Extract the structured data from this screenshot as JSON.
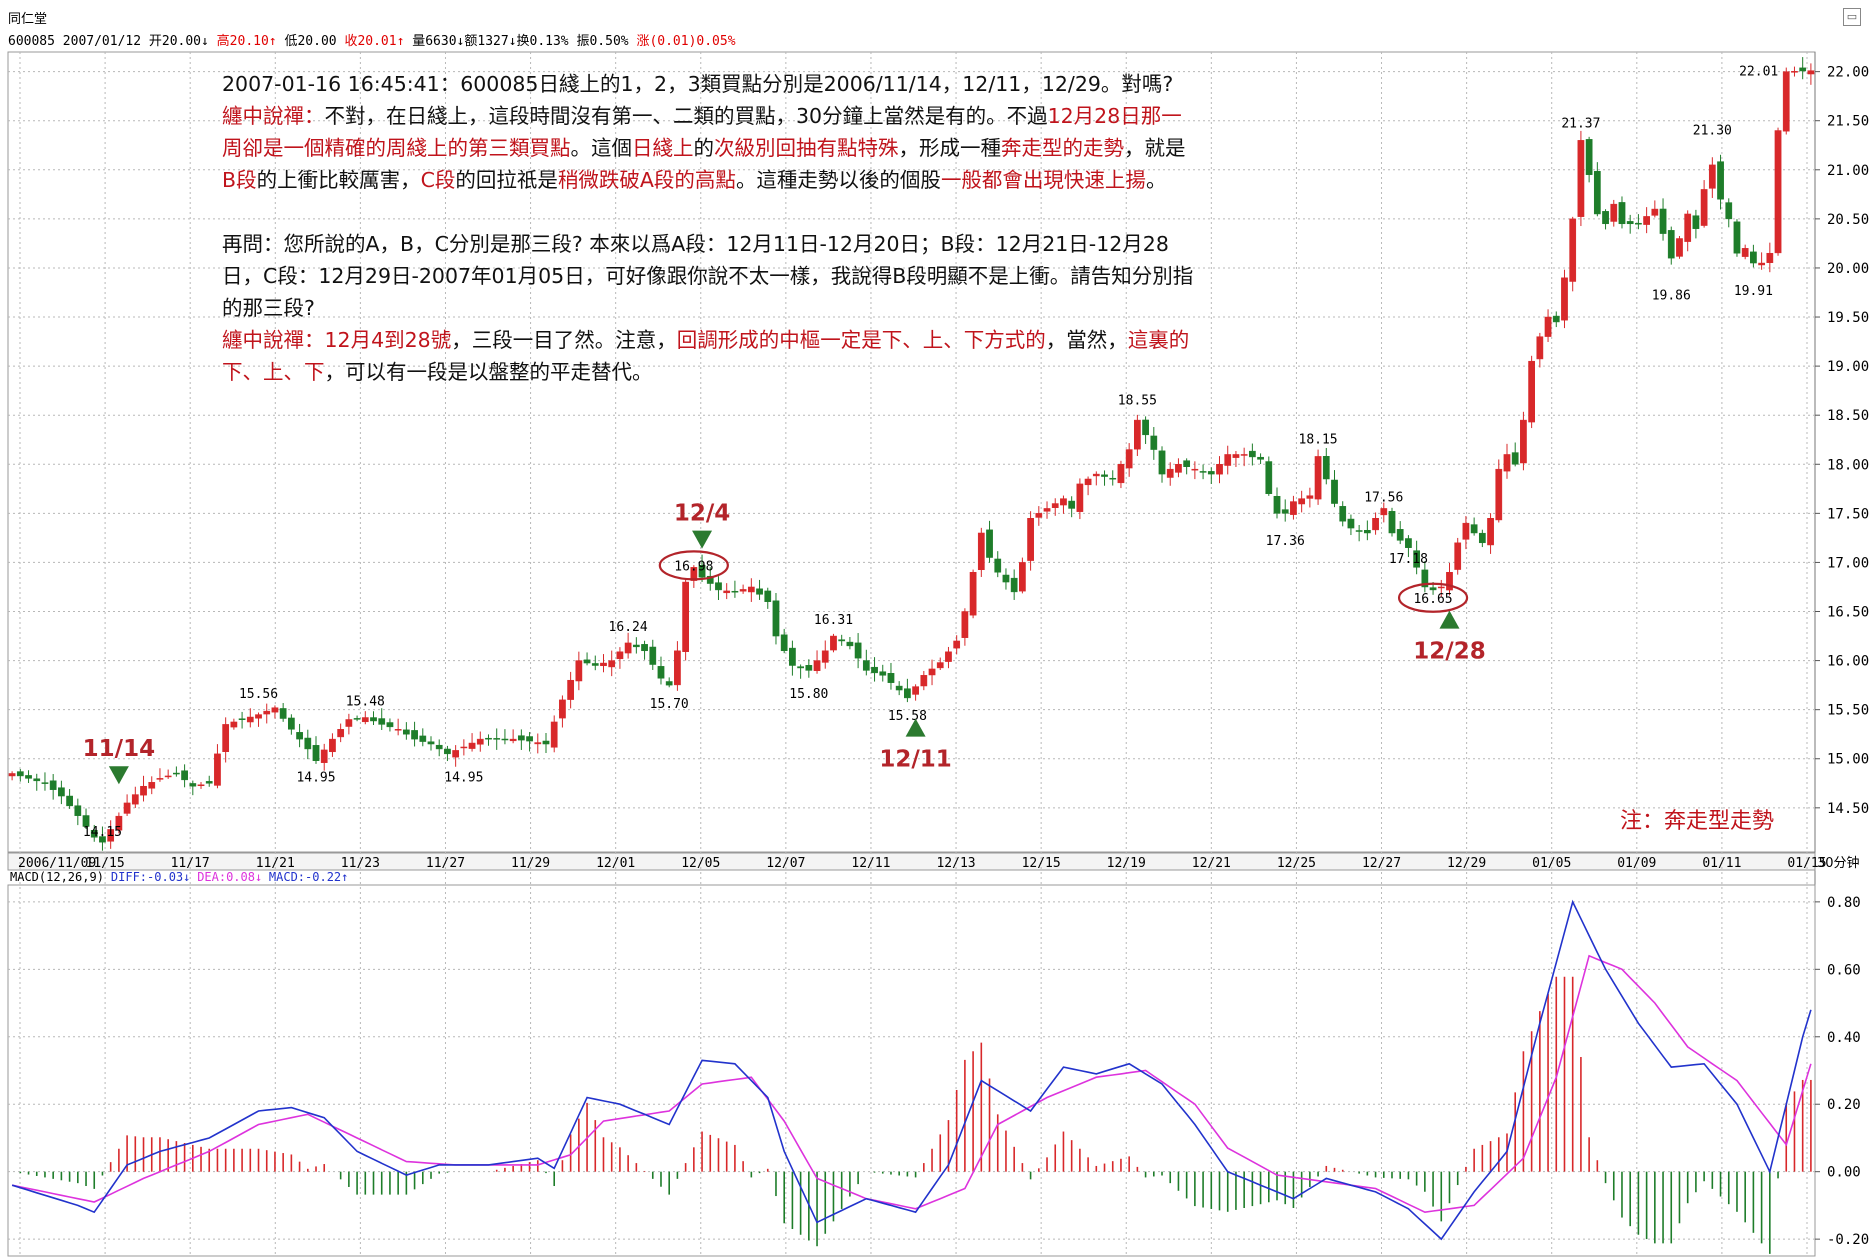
{
  "header": {
    "app_title": "同仁堂",
    "quote": [
      {
        "t": "600085 2007/01/12 开20.00↓",
        "red": false
      },
      {
        "t": "高20.10↑",
        "red": true
      },
      {
        "t": "低20.00",
        "red": false
      },
      {
        "t": "收20.01↑",
        "red": true
      },
      {
        "t": "量6630↓额1327↓换0.13% 振0.50%",
        "red": false
      },
      {
        "t": "涨(0.01)0.05%",
        "red": true
      }
    ]
  },
  "notes": [
    [
      {
        "t": "2007-01-16 16:45:41：600085日綫上的1，2，3類買點分別是2006/11/14，12/11，12/29。對嗎?",
        "red": false
      }
    ],
    [
      {
        "t": "纏中說禪：",
        "red": true
      },
      {
        "t": "不對，在日綫上，這段時間沒有第一、二類的買點，30分鐘上當然是有的。不過",
        "red": false
      },
      {
        "t": "12月28日那一",
        "red": true
      }
    ],
    [
      {
        "t": "周卻是一個精確的周綫上的第三類買點",
        "red": true
      },
      {
        "t": "。這個",
        "red": false
      },
      {
        "t": "日綫上",
        "red": true
      },
      {
        "t": "的",
        "red": false
      },
      {
        "t": "次級別回抽有點特殊",
        "red": true
      },
      {
        "t": "，形成一種",
        "red": false
      },
      {
        "t": "奔走型的走勢",
        "red": true
      },
      {
        "t": "，就是",
        "red": false
      }
    ],
    [
      {
        "t": "B段",
        "red": true
      },
      {
        "t": "的上衝比較厲害，",
        "red": false
      },
      {
        "t": "C段",
        "red": true
      },
      {
        "t": "的回拉祇是",
        "red": false
      },
      {
        "t": "稍微跌破A段的高點",
        "red": true
      },
      {
        "t": "。這種走勢以後的個股",
        "red": false
      },
      {
        "t": "一般都會出現快速上揚",
        "red": true
      },
      {
        "t": "。",
        "red": false
      }
    ],
    [],
    [
      {
        "t": "再問：您所說的A，B，C分別是那三段? 本來以爲A段：12月11日-12月20日；B段：12月21日-12月28",
        "red": false
      }
    ],
    [
      {
        "t": "日，C段：12月29日-2007年01月05日，可好像跟你說不太一樣，我說得B段明顯不是上衝。請告知分別指",
        "red": false
      }
    ],
    [
      {
        "t": "的那三段?",
        "red": false
      }
    ],
    [
      {
        "t": "纏中說禪：12月4到28號",
        "red": true
      },
      {
        "t": "，三段一目了然。注意，",
        "red": false
      },
      {
        "t": "回調形成的中樞一定是下、上、下方式的",
        "red": true
      },
      {
        "t": "，當然，",
        "red": false
      },
      {
        "t": "這裏的",
        "red": true
      }
    ],
    [
      {
        "t": "下、上、下",
        "red": true
      },
      {
        "t": "，可以有一段是以盤整的平走替代。",
        "red": false
      }
    ]
  ],
  "footnote": "注：奔走型走勢",
  "icons": {
    "corner": "window-restore-icon"
  },
  "colors": {
    "up": "#d8282a",
    "down": "#1e7d2a",
    "diff": "#2233cc",
    "dea": "#dd33dd",
    "note_red": "#c0141c",
    "grid": "#b8b8b8"
  },
  "chart_data": [
    {
      "type": "candlestick",
      "period_label": "30分钟",
      "y_axis": {
        "ylim": [
          14.05,
          22.2
        ],
        "ticks": [
          "14.50",
          "15.00",
          "15.50",
          "16.00",
          "16.50",
          "17.00",
          "17.50",
          "18.00",
          "18.50",
          "19.00",
          "19.50",
          "20.00",
          "20.50",
          "21.00",
          "21.50",
          "22.00"
        ]
      },
      "x_ticks": [
        "2006/11/09",
        "11/15",
        "11/17",
        "11/21",
        "11/23",
        "11/27",
        "11/29",
        "12/01",
        "12/05",
        "12/07",
        "12/11",
        "12/13",
        "12/15",
        "12/19",
        "12/21",
        "12/25",
        "12/27",
        "12/29",
        "01/05",
        "01/09",
        "01/11",
        "01/15"
      ],
      "close_path": [
        [
          0,
          14.85
        ],
        [
          2,
          14.8
        ],
        [
          4,
          14.75
        ],
        [
          6,
          14.62
        ],
        [
          8,
          14.42
        ],
        [
          10,
          14.2
        ],
        [
          11,
          14.15
        ],
        [
          12,
          14.28
        ],
        [
          14,
          14.55
        ],
        [
          16,
          14.72
        ],
        [
          18,
          14.8
        ],
        [
          20,
          14.85
        ],
        [
          22,
          14.72
        ],
        [
          24,
          14.75
        ],
        [
          26,
          15.35
        ],
        [
          28,
          15.4
        ],
        [
          30,
          15.45
        ],
        [
          32,
          15.52
        ],
        [
          34,
          15.3
        ],
        [
          36,
          15.1
        ],
        [
          37,
          14.98
        ],
        [
          39,
          15.2
        ],
        [
          41,
          15.4
        ],
        [
          43,
          15.42
        ],
        [
          45,
          15.35
        ],
        [
          47,
          15.3
        ],
        [
          49,
          15.2
        ],
        [
          51,
          15.15
        ],
        [
          53,
          15.05
        ],
        [
          55,
          15.12
        ],
        [
          57,
          15.2
        ],
        [
          59,
          15.2
        ],
        [
          61,
          15.2
        ],
        [
          63,
          15.18
        ],
        [
          65,
          15.15
        ],
        [
          67,
          15.6
        ],
        [
          69,
          16.0
        ],
        [
          71,
          15.95
        ],
        [
          73,
          16.0
        ],
        [
          75,
          16.18
        ],
        [
          77,
          16.1
        ],
        [
          79,
          15.82
        ],
        [
          80,
          15.75
        ],
        [
          81,
          16.1
        ],
        [
          82,
          16.8
        ],
        [
          83,
          16.95
        ],
        [
          84,
          16.85
        ],
        [
          86,
          16.72
        ],
        [
          88,
          16.7
        ],
        [
          90,
          16.75
        ],
        [
          92,
          16.6
        ],
        [
          93,
          16.25
        ],
        [
          95,
          15.95
        ],
        [
          97,
          15.9
        ],
        [
          99,
          16.1
        ],
        [
          100,
          16.25
        ],
        [
          102,
          16.15
        ],
        [
          104,
          15.9
        ],
        [
          106,
          15.85
        ],
        [
          108,
          15.7
        ],
        [
          109,
          15.62
        ],
        [
          111,
          15.85
        ],
        [
          113,
          15.98
        ],
        [
          115,
          16.2
        ],
        [
          116,
          16.5
        ],
        [
          117,
          16.9
        ],
        [
          118,
          17.3
        ],
        [
          119,
          17.05
        ],
        [
          120,
          16.9
        ],
        [
          121,
          16.8
        ],
        [
          122,
          16.7
        ],
        [
          123,
          17.0
        ],
        [
          124,
          17.45
        ],
        [
          126,
          17.55
        ],
        [
          128,
          17.65
        ],
        [
          129,
          17.55
        ],
        [
          130,
          17.8
        ],
        [
          132,
          17.9
        ],
        [
          134,
          17.85
        ],
        [
          136,
          18.15
        ],
        [
          137,
          18.45
        ],
        [
          138,
          18.3
        ],
        [
          139,
          18.15
        ],
        [
          140,
          17.9
        ],
        [
          142,
          18.0
        ],
        [
          144,
          17.95
        ],
        [
          146,
          17.9
        ],
        [
          148,
          18.1
        ],
        [
          150,
          18.1
        ],
        [
          152,
          18.05
        ],
        [
          153,
          17.7
        ],
        [
          154,
          17.5
        ],
        [
          155,
          17.5
        ],
        [
          156,
          17.62
        ],
        [
          158,
          17.68
        ],
        [
          159,
          18.08
        ],
        [
          160,
          17.85
        ],
        [
          161,
          17.6
        ],
        [
          162,
          17.42
        ],
        [
          163,
          17.35
        ],
        [
          165,
          17.3
        ],
        [
          166,
          17.45
        ],
        [
          167,
          17.55
        ],
        [
          168,
          17.3
        ],
        [
          170,
          17.15
        ],
        [
          171,
          16.95
        ],
        [
          172,
          16.75
        ],
        [
          173,
          16.72
        ],
        [
          174,
          16.75
        ],
        [
          175,
          16.9
        ],
        [
          176,
          17.2
        ],
        [
          177,
          17.4
        ],
        [
          178,
          17.3
        ],
        [
          179,
          17.2
        ],
        [
          180,
          17.45
        ],
        [
          181,
          17.95
        ],
        [
          182,
          18.1
        ],
        [
          183,
          18.0
        ],
        [
          184,
          18.45
        ],
        [
          185,
          19.05
        ],
        [
          186,
          19.3
        ],
        [
          187,
          19.5
        ],
        [
          188,
          19.45
        ],
        [
          189,
          19.9
        ],
        [
          190,
          20.5
        ],
        [
          191,
          21.3
        ],
        [
          192,
          20.95
        ],
        [
          193,
          20.55
        ],
        [
          194,
          20.45
        ],
        [
          195,
          20.65
        ],
        [
          196,
          20.45
        ],
        [
          198,
          20.45
        ],
        [
          200,
          20.6
        ],
        [
          201,
          20.35
        ],
        [
          202,
          20.1
        ],
        [
          203,
          20.3
        ],
        [
          204,
          20.55
        ],
        [
          205,
          20.4
        ],
        [
          206,
          20.8
        ],
        [
          207,
          21.05
        ],
        [
          208,
          20.7
        ],
        [
          209,
          20.5
        ],
        [
          210,
          20.15
        ],
        [
          211,
          20.2
        ],
        [
          212,
          20.05
        ],
        [
          213,
          20.05
        ],
        [
          214,
          20.15
        ],
        [
          215,
          21.4
        ],
        [
          216,
          22.0
        ],
        [
          219,
          22.01
        ]
      ],
      "annotations": [
        {
          "label": "14.15",
          "i": 11,
          "v": 14.15,
          "pos": "above"
        },
        {
          "label": "15.56",
          "i": 30,
          "v": 15.56,
          "pos": "above"
        },
        {
          "label": "14.95",
          "i": 37,
          "v": 14.95,
          "pos": "below"
        },
        {
          "label": "15.48",
          "i": 43,
          "v": 15.48,
          "pos": "above"
        },
        {
          "label": "14.95",
          "i": 55,
          "v": 14.95,
          "pos": "below"
        },
        {
          "label": "16.24",
          "i": 75,
          "v": 16.24,
          "pos": "above"
        },
        {
          "label": "15.70",
          "i": 80,
          "v": 15.7,
          "pos": "below"
        },
        {
          "label": "16.98",
          "i": 83,
          "v": 16.98,
          "pos": "circled"
        },
        {
          "label": "16.31",
          "i": 100,
          "v": 16.31,
          "pos": "above"
        },
        {
          "label": "15.80",
          "i": 97,
          "v": 15.8,
          "pos": "below"
        },
        {
          "label": "15.58",
          "i": 109,
          "v": 15.58,
          "pos": "below"
        },
        {
          "label": "18.55",
          "i": 137,
          "v": 18.55,
          "pos": "above"
        },
        {
          "label": "18.15",
          "i": 159,
          "v": 18.15,
          "pos": "above"
        },
        {
          "label": "17.36",
          "i": 155,
          "v": 17.36,
          "pos": "below"
        },
        {
          "label": "17.56",
          "i": 167,
          "v": 17.56,
          "pos": "above"
        },
        {
          "label": "17.18",
          "i": 170,
          "v": 17.18,
          "pos": "below"
        },
        {
          "label": "16.65",
          "i": 173,
          "v": 16.65,
          "pos": "circled"
        },
        {
          "label": "21.37",
          "i": 191,
          "v": 21.37,
          "pos": "above"
        },
        {
          "label": "19.86",
          "i": 202,
          "v": 19.86,
          "pos": "below"
        },
        {
          "label": "21.30",
          "i": 207,
          "v": 21.3,
          "pos": "above"
        },
        {
          "label": "19.91",
          "i": 212,
          "v": 19.91,
          "pos": "below"
        },
        {
          "label": "22.01",
          "i": 216,
          "v": 22.01,
          "pos": "left"
        }
      ],
      "markers": [
        {
          "label": "11/14",
          "i": 13,
          "v": 14.7,
          "dir": "down"
        },
        {
          "label": "12/4",
          "i": 84,
          "v": 17.1,
          "dir": "down"
        },
        {
          "label": "12/11",
          "i": 110,
          "v": 15.45,
          "dir": "up"
        },
        {
          "label": "12/28",
          "i": 175,
          "v": 16.55,
          "dir": "up"
        }
      ]
    },
    {
      "type": "macd",
      "legend": [
        {
          "t": "MACD(12,26,9)",
          "c": "#000000"
        },
        {
          "t": "DIFF:-0.03↓",
          "c": "#2233cc"
        },
        {
          "t": "DEA:0.08↓",
          "c": "#dd33dd"
        },
        {
          "t": "MACD:-0.22↑",
          "c": "#2233cc"
        }
      ],
      "ylim": [
        -0.25,
        0.85
      ],
      "ticks": [
        "-0.20",
        "0.00",
        "0.20",
        "0.40",
        "0.60",
        "0.80"
      ],
      "diff": [
        [
          0,
          -0.04
        ],
        [
          8,
          -0.1
        ],
        [
          10,
          -0.12
        ],
        [
          14,
          0.02
        ],
        [
          18,
          0.06
        ],
        [
          24,
          0.1
        ],
        [
          30,
          0.18
        ],
        [
          34,
          0.19
        ],
        [
          38,
          0.16
        ],
        [
          42,
          0.06
        ],
        [
          48,
          -0.01
        ],
        [
          52,
          0.02
        ],
        [
          58,
          0.02
        ],
        [
          64,
          0.04
        ],
        [
          66,
          0.01
        ],
        [
          70,
          0.22
        ],
        [
          74,
          0.2
        ],
        [
          80,
          0.14
        ],
        [
          84,
          0.33
        ],
        [
          88,
          0.32
        ],
        [
          92,
          0.22
        ],
        [
          94,
          0.06
        ],
        [
          98,
          -0.15
        ],
        [
          104,
          -0.08
        ],
        [
          110,
          -0.12
        ],
        [
          114,
          0.02
        ],
        [
          118,
          0.27
        ],
        [
          124,
          0.18
        ],
        [
          128,
          0.31
        ],
        [
          132,
          0.29
        ],
        [
          136,
          0.32
        ],
        [
          140,
          0.26
        ],
        [
          144,
          0.14
        ],
        [
          148,
          0.0
        ],
        [
          152,
          -0.04
        ],
        [
          156,
          -0.08
        ],
        [
          160,
          -0.02
        ],
        [
          166,
          -0.06
        ],
        [
          170,
          -0.11
        ],
        [
          174,
          -0.2
        ],
        [
          178,
          -0.06
        ],
        [
          182,
          0.06
        ],
        [
          186,
          0.44
        ],
        [
          190,
          0.8
        ],
        [
          194,
          0.6
        ],
        [
          198,
          0.44
        ],
        [
          202,
          0.31
        ],
        [
          206,
          0.32
        ],
        [
          210,
          0.2
        ],
        [
          214,
          0.0
        ],
        [
          218,
          0.4
        ],
        [
          219,
          0.48
        ]
      ],
      "dea": [
        [
          0,
          -0.04
        ],
        [
          10,
          -0.09
        ],
        [
          16,
          -0.02
        ],
        [
          24,
          0.06
        ],
        [
          30,
          0.14
        ],
        [
          36,
          0.17
        ],
        [
          42,
          0.1
        ],
        [
          48,
          0.03
        ],
        [
          54,
          0.02
        ],
        [
          64,
          0.02
        ],
        [
          68,
          0.05
        ],
        [
          72,
          0.15
        ],
        [
          80,
          0.18
        ],
        [
          84,
          0.26
        ],
        [
          90,
          0.28
        ],
        [
          94,
          0.15
        ],
        [
          98,
          -0.02
        ],
        [
          104,
          -0.08
        ],
        [
          110,
          -0.11
        ],
        [
          116,
          -0.05
        ],
        [
          120,
          0.14
        ],
        [
          126,
          0.22
        ],
        [
          132,
          0.28
        ],
        [
          138,
          0.3
        ],
        [
          144,
          0.2
        ],
        [
          148,
          0.07
        ],
        [
          154,
          -0.01
        ],
        [
          160,
          -0.03
        ],
        [
          166,
          -0.05
        ],
        [
          172,
          -0.12
        ],
        [
          178,
          -0.1
        ],
        [
          184,
          0.04
        ],
        [
          188,
          0.28
        ],
        [
          192,
          0.64
        ],
        [
          196,
          0.6
        ],
        [
          200,
          0.5
        ],
        [
          204,
          0.37
        ],
        [
          210,
          0.27
        ],
        [
          216,
          0.08
        ],
        [
          219,
          0.32
        ]
      ],
      "bar_scale": 1.7
    }
  ]
}
